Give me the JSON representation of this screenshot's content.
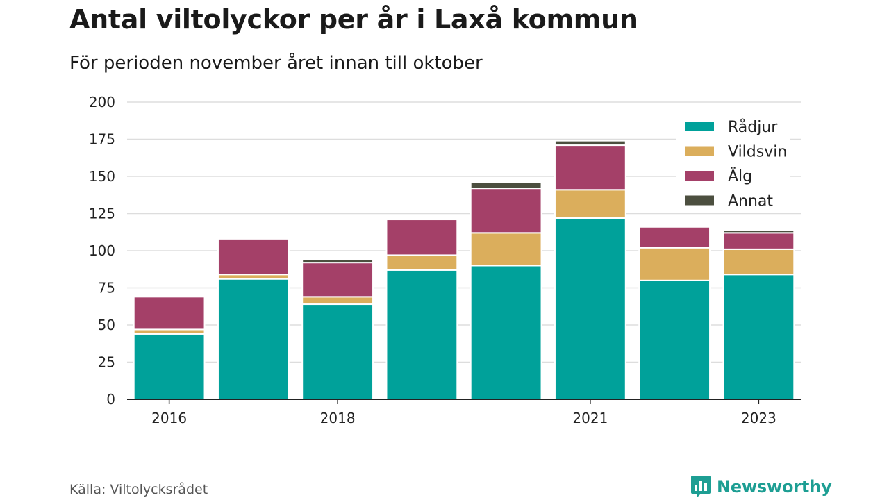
{
  "header": {
    "title": "Antal viltolyckor per år i Laxå kommun",
    "subtitle": "För perioden november året innan till oktober"
  },
  "footer": {
    "source": "Källa: Viltolycksrådet",
    "brand": "Newsworthy",
    "brand_icon": "bar-chart-logo-icon",
    "brand_color": "#1d9e93"
  },
  "chart_data": {
    "type": "bar",
    "stacked": true,
    "categories": [
      "2016",
      "2017",
      "2018",
      "2019",
      "2020",
      "2021",
      "2022",
      "2023"
    ],
    "x_tick_labels": [
      "2016",
      "",
      "2018",
      "",
      "",
      "2021",
      "",
      "2023"
    ],
    "series": [
      {
        "name": "Rådjur",
        "color": "#00a19a",
        "values": [
          44,
          81,
          64,
          87,
          90,
          122,
          80,
          84
        ]
      },
      {
        "name": "Vildsvin",
        "color": "#dbae5c",
        "values": [
          3,
          3,
          5,
          10,
          22,
          19,
          22,
          17
        ]
      },
      {
        "name": "Älg",
        "color": "#a44068",
        "values": [
          22,
          24,
          23,
          24,
          30,
          30,
          14,
          11
        ]
      },
      {
        "name": "Annat",
        "color": "#4c4f3f",
        "values": [
          0,
          0,
          2,
          0,
          4,
          3,
          0,
          2
        ]
      }
    ],
    "y_ticks": [
      0,
      25,
      50,
      75,
      100,
      125,
      150,
      175,
      200
    ],
    "ylim": [
      0,
      200
    ],
    "xlabel": "",
    "ylabel": "",
    "grid": true,
    "legend_position": "top-right"
  }
}
